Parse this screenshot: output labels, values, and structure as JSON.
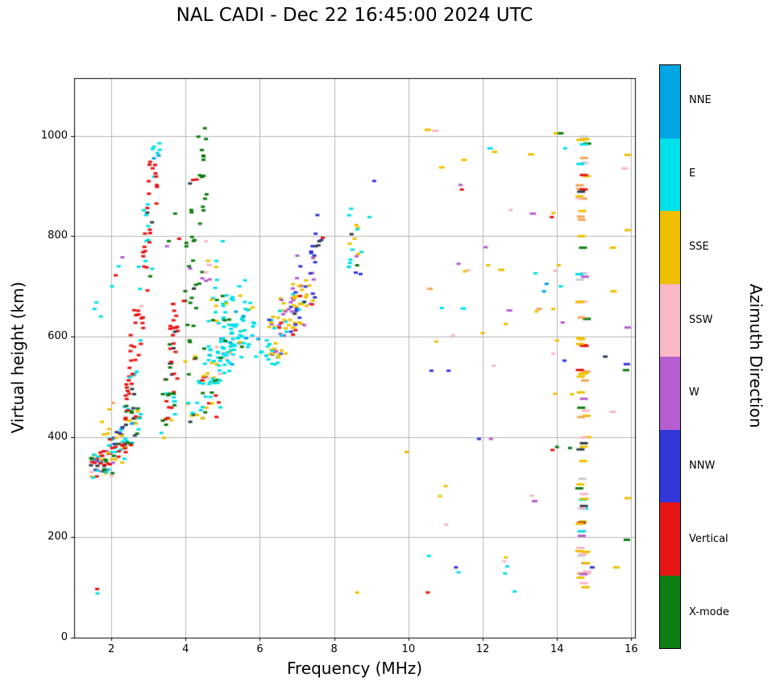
{
  "chart_data": {
    "type": "scatter",
    "title": "NAL CADI - Dec 22 16:45:00 2024 UTC",
    "xlabel": "Frequency (MHz)",
    "ylabel": "Virtual height (km)",
    "colorbar_label": "Azimuth Direction",
    "xlim": [
      1.0,
      16.1
    ],
    "ylim": [
      0,
      1115
    ],
    "xticks": [
      2,
      4,
      6,
      8,
      10,
      12,
      14,
      16
    ],
    "yticks": [
      0,
      200,
      400,
      600,
      800,
      1000
    ],
    "grid": true,
    "grid_color": "#b6b6b6",
    "seed": 42,
    "point_size": [
      5,
      3
    ],
    "colors": {
      "NNE": "#00A5E3",
      "E": "#00E0E8",
      "SSE": "#EFC000",
      "SSW": "#F9B8C6",
      "W": "#B55ECF",
      "NNW": "#3437D8",
      "Vertical": "#E81515",
      "X-mode": "#0E7D12",
      "dark": "#32404E",
      "orange": "#F2A65A",
      "gray": "#C8CDD2"
    },
    "legend": [
      {
        "label": "NNE",
        "key": "NNE"
      },
      {
        "label": "E",
        "key": "E"
      },
      {
        "label": "SSE",
        "key": "SSE"
      },
      {
        "label": "SSW",
        "key": "SSW"
      },
      {
        "label": "W",
        "key": "W"
      },
      {
        "label": "NNW",
        "key": "NNW"
      },
      {
        "label": "Vertical",
        "key": "Vertical"
      },
      {
        "label": "X-mode",
        "key": "X-mode"
      }
    ],
    "clusters": [
      {
        "rect": [
          1.45,
          2.05,
          318,
          372
        ],
        "n": 48,
        "colors": {
          "Vertical": 0.3,
          "E": 0.18,
          "SSE": 0.15,
          "X-mode": 0.1,
          "NNW": 0.08,
          "dark": 0.07,
          "W": 0.06,
          "SSW": 0.06
        }
      },
      {
        "rect": [
          1.85,
          2.45,
          345,
          420
        ],
        "n": 40,
        "colors": {
          "SSE": 0.22,
          "E": 0.2,
          "Vertical": 0.18,
          "X-mode": 0.15,
          "dark": 0.1,
          "NNW": 0.15
        }
      },
      {
        "rect": [
          2.25,
          2.8,
          380,
          465
        ],
        "n": 34,
        "colors": {
          "Vertical": 0.28,
          "E": 0.2,
          "X-mode": 0.16,
          "SSE": 0.16,
          "dark": 0.1,
          "NNE": 0.1
        }
      },
      {
        "rect": [
          2.35,
          2.62,
          430,
          525
        ],
        "n": 14,
        "colors": {
          "Vertical": 0.8,
          "dark": 0.2
        }
      },
      {
        "rect": [
          2.48,
          2.75,
          505,
          605
        ],
        "n": 14,
        "colors": {
          "Vertical": 0.85,
          "E": 0.15
        }
      },
      {
        "rect": [
          2.6,
          2.88,
          585,
          700
        ],
        "n": 13,
        "colors": {
          "Vertical": 0.78,
          "SSW": 0.1,
          "E": 0.12
        }
      },
      {
        "rect": [
          2.73,
          3.0,
          685,
          795
        ],
        "n": 12,
        "colors": {
          "Vertical": 0.75,
          "E": 0.25
        }
      },
      {
        "rect": [
          2.87,
          3.14,
          780,
          885
        ],
        "n": 12,
        "colors": {
          "Vertical": 0.7,
          "E": 0.2,
          "dark": 0.1
        }
      },
      {
        "rect": [
          3.0,
          3.28,
          865,
          950
        ],
        "n": 10,
        "colors": {
          "Vertical": 0.8,
          "E": 0.2
        }
      },
      {
        "rect": [
          3.1,
          3.34,
          950,
          988
        ],
        "n": 6,
        "colors": {
          "E": 0.7,
          "NNE": 0.3
        }
      },
      {
        "rect": [
          3.38,
          3.72,
          420,
          520
        ],
        "n": 22,
        "colors": {
          "Vertical": 0.45,
          "X-mode": 0.2,
          "SSE": 0.15,
          "E": 0.2
        }
      },
      {
        "rect": [
          3.52,
          3.82,
          505,
          625
        ],
        "n": 18,
        "colors": {
          "Vertical": 0.6,
          "X-mode": 0.25,
          "dark": 0.15
        }
      },
      {
        "rect": [
          3.58,
          3.8,
          615,
          665
        ],
        "n": 7,
        "colors": {
          "Vertical": 0.8,
          "X-mode": 0.2
        }
      },
      {
        "rect": [
          3.95,
          4.3,
          515,
          700
        ],
        "n": 16,
        "colors": {
          "X-mode": 0.65,
          "SSE": 0.2,
          "Vertical": 0.15
        }
      },
      {
        "rect": [
          4.15,
          4.5,
          690,
          860
        ],
        "n": 11,
        "colors": {
          "X-mode": 0.8,
          "dark": 0.2
        }
      },
      {
        "rect": [
          4.33,
          4.58,
          850,
          1018
        ],
        "n": 11,
        "colors": {
          "X-mode": 0.9,
          "dark": 0.1
        }
      },
      {
        "rect": [
          3.8,
          4.25,
          700,
          800
        ],
        "n": 7,
        "colors": {
          "X-mode": 0.45,
          "Vertical": 0.3,
          "W": 0.25
        }
      },
      {
        "rect": [
          4.05,
          4.35,
          428,
          482
        ],
        "n": 9,
        "colors": {
          "SSE": 0.4,
          "E": 0.3,
          "dark": 0.3
        }
      },
      {
        "rect": [
          4.3,
          4.95,
          432,
          522
        ],
        "n": 30,
        "colors": {
          "E": 0.45,
          "X-mode": 0.2,
          "SSE": 0.18,
          "Vertical": 0.17
        }
      },
      {
        "rect": [
          4.5,
          5.2,
          500,
          592
        ],
        "n": 34,
        "colors": {
          "E": 0.6,
          "SSE": 0.15,
          "X-mode": 0.15,
          "SSW": 0.1
        }
      },
      {
        "rect": [
          4.85,
          5.6,
          538,
          642
        ],
        "n": 40,
        "colors": {
          "E": 0.72,
          "SSE": 0.1,
          "X-mode": 0.06,
          "NNE": 0.12
        }
      },
      {
        "rect": [
          5.2,
          5.85,
          578,
          682
        ],
        "n": 34,
        "colors": {
          "E": 0.78,
          "SSE": 0.1,
          "NNE": 0.12
        }
      },
      {
        "rect": [
          4.6,
          5.12,
          618,
          702
        ],
        "n": 18,
        "colors": {
          "E": 0.6,
          "X-mode": 0.2,
          "SSE": 0.2
        }
      },
      {
        "rect": [
          4.42,
          4.85,
          700,
          795
        ],
        "n": 10,
        "colors": {
          "SSW": 0.3,
          "E": 0.3,
          "SSE": 0.2,
          "W": 0.2
        }
      },
      {
        "rect": [
          5.95,
          6.25,
          552,
          605
        ],
        "n": 7,
        "colors": {
          "E": 0.7,
          "NNE": 0.3
        }
      },
      {
        "rect": [
          6.25,
          6.7,
          558,
          642
        ],
        "n": 26,
        "colors": {
          "SSE": 0.38,
          "E": 0.18,
          "W": 0.14,
          "Vertical": 0.12,
          "NNW": 0.18
        }
      },
      {
        "rect": [
          6.5,
          7.0,
          598,
          682
        ],
        "n": 30,
        "colors": {
          "SSE": 0.42,
          "W": 0.2,
          "NNW": 0.15,
          "Vertical": 0.1,
          "E": 0.13
        }
      },
      {
        "rect": [
          6.8,
          7.3,
          618,
          722
        ],
        "n": 26,
        "colors": {
          "SSE": 0.4,
          "W": 0.2,
          "NNW": 0.18,
          "dark": 0.1,
          "E": 0.12
        }
      },
      {
        "rect": [
          7.0,
          7.5,
          660,
          762
        ],
        "n": 18,
        "colors": {
          "NNW": 0.3,
          "SSE": 0.28,
          "W": 0.2,
          "Vertical": 0.22
        }
      },
      {
        "rect": [
          6.3,
          6.62,
          538,
          575
        ],
        "n": 8,
        "colors": {
          "E": 0.5,
          "SSE": 0.5
        }
      },
      {
        "rect": [
          7.3,
          7.72,
          740,
          800
        ],
        "n": 8,
        "colors": {
          "NNW": 0.4,
          "dark": 0.2,
          "SSE": 0.2,
          "Vertical": 0.2
        }
      },
      {
        "rect": [
          8.35,
          8.75,
          720,
          868
        ],
        "n": 16,
        "colors": {
          "E": 0.5,
          "NNW": 0.2,
          "dark": 0.12,
          "SSE": 0.18
        }
      },
      {
        "rect": [
          14.6,
          14.82,
          88,
          1008
        ],
        "n": 85,
        "w": 10,
        "colors": {
          "SSE": 0.45,
          "orange": 0.13,
          "SSW": 0.11,
          "Vertical": 0.05,
          "X-mode": 0.05,
          "E": 0.06,
          "dark": 0.05,
          "W": 0.04,
          "gray": 0.06
        }
      }
    ],
    "points": [
      [
        1.62,
        97,
        "Vertical"
      ],
      [
        1.63,
        88,
        "E"
      ],
      [
        1.55,
        655,
        "E"
      ],
      [
        1.6,
        668,
        "E"
      ],
      [
        1.72,
        640,
        "E"
      ],
      [
        2.02,
        700,
        "E"
      ],
      [
        2.12,
        722,
        "Vertical"
      ],
      [
        2.2,
        740,
        "E"
      ],
      [
        2.3,
        758,
        "W"
      ],
      [
        1.75,
        430,
        "SSE"
      ],
      [
        1.8,
        405,
        "SSE"
      ],
      [
        1.95,
        455,
        "SSE"
      ],
      [
        2.05,
        468,
        "orange"
      ],
      [
        3.18,
        942,
        "Vertical"
      ],
      [
        3.3,
        985,
        "E"
      ],
      [
        3.05,
        720,
        "X-mode"
      ],
      [
        3.1,
        735,
        "E"
      ],
      [
        3.35,
        408,
        "E"
      ],
      [
        3.42,
        398,
        "SSE"
      ],
      [
        3.55,
        790,
        "X-mode"
      ],
      [
        3.5,
        780,
        "W"
      ],
      [
        3.72,
        845,
        "X-mode"
      ],
      [
        4.2,
        912,
        "Vertical"
      ],
      [
        4.12,
        905,
        "dark"
      ],
      [
        4.3,
        913,
        "Vertical"
      ],
      [
        4.52,
        1015,
        "X-mode"
      ],
      [
        4.55,
        790,
        "SSW"
      ],
      [
        5.0,
        790,
        "E"
      ],
      [
        5.45,
        700,
        "E"
      ],
      [
        5.6,
        712,
        "E"
      ],
      [
        5.9,
        560,
        "E"
      ],
      [
        6.05,
        570,
        "E"
      ],
      [
        7.5,
        805,
        "NNW"
      ],
      [
        7.55,
        842,
        "NNW"
      ],
      [
        7.6,
        790,
        "dark"
      ],
      [
        8.55,
        795,
        "SSE"
      ],
      [
        8.6,
        760,
        "W"
      ],
      [
        8.62,
        742,
        "X-mode"
      ],
      [
        9.08,
        910,
        "NNW"
      ],
      [
        8.95,
        838,
        "E"
      ],
      [
        8.62,
        90,
        "SSE"
      ],
      [
        9.95,
        370,
        "SSE"
      ],
      [
        10.52,
        1012,
        "SSE",
        8
      ],
      [
        10.72,
        1010,
        "SSW",
        8
      ],
      [
        10.9,
        937,
        "SSE",
        7
      ],
      [
        11.5,
        952,
        "SSE",
        7
      ],
      [
        11.4,
        902,
        "W"
      ],
      [
        11.44,
        893,
        "Vertical"
      ],
      [
        12.2,
        975,
        "E",
        7
      ],
      [
        12.32,
        968,
        "SSE",
        7
      ],
      [
        13.3,
        963,
        "SSE",
        8
      ],
      [
        13.98,
        1005,
        "SSE",
        7
      ],
      [
        14.1,
        1005,
        "X-mode",
        7
      ],
      [
        14.22,
        975,
        "E"
      ],
      [
        12.75,
        852,
        "SSW"
      ],
      [
        13.35,
        845,
        "W",
        8
      ],
      [
        13.9,
        846,
        "SSE"
      ],
      [
        13.86,
        838,
        "Vertical"
      ],
      [
        12.08,
        778,
        "W"
      ],
      [
        12.15,
        742,
        "SSE"
      ],
      [
        12.5,
        733,
        "SSE",
        8
      ],
      [
        13.42,
        726,
        "E"
      ],
      [
        11.62,
        732,
        "SSW"
      ],
      [
        11.35,
        745,
        "W"
      ],
      [
        11.52,
        730,
        "SSE"
      ],
      [
        10.58,
        695,
        "orange",
        7
      ],
      [
        10.9,
        657,
        "E"
      ],
      [
        11.48,
        656,
        "E",
        7
      ],
      [
        11.2,
        602,
        "SSW"
      ],
      [
        10.75,
        590,
        "SSE"
      ],
      [
        12.0,
        607,
        "SSE"
      ],
      [
        12.3,
        542,
        "SSW"
      ],
      [
        12.72,
        652,
        "W",
        7
      ],
      [
        13.52,
        655,
        "orange",
        7
      ],
      [
        13.45,
        650,
        "SSE"
      ],
      [
        12.62,
        625,
        "SSE"
      ],
      [
        11.08,
        532,
        "NNW"
      ],
      [
        10.62,
        532,
        "NNW"
      ],
      [
        11.9,
        396,
        "NNW"
      ],
      [
        12.22,
        396,
        "W"
      ],
      [
        13.4,
        272,
        "W",
        7
      ],
      [
        13.32,
        283,
        "SSW"
      ],
      [
        11.0,
        302,
        "SSE"
      ],
      [
        10.85,
        282,
        "SSE"
      ],
      [
        11.02,
        225,
        "SSW"
      ],
      [
        10.55,
        163,
        "E"
      ],
      [
        11.28,
        140,
        "NNW"
      ],
      [
        11.35,
        130,
        "E"
      ],
      [
        10.52,
        90,
        "Vertical"
      ],
      [
        12.58,
        152,
        "SSW"
      ],
      [
        12.66,
        142,
        "E"
      ],
      [
        12.6,
        128,
        "E"
      ],
      [
        12.86,
        92,
        "E"
      ],
      [
        12.62,
        160,
        "SSE"
      ],
      [
        13.65,
        690,
        "NNE"
      ],
      [
        13.72,
        705,
        "NNE"
      ],
      [
        14.05,
        742,
        "SSE"
      ],
      [
        13.95,
        731,
        "SSW"
      ],
      [
        14.1,
        700,
        "E"
      ],
      [
        13.9,
        655,
        "SSE"
      ],
      [
        14.0,
        592,
        "SSE"
      ],
      [
        13.9,
        566,
        "SSW"
      ],
      [
        13.95,
        486,
        "SSE"
      ],
      [
        14.0,
        380,
        "X-mode"
      ],
      [
        13.88,
        374,
        "Vertical"
      ],
      [
        14.2,
        552,
        "NNW"
      ],
      [
        14.15,
        628,
        "W"
      ],
      [
        14.4,
        485,
        "SSE"
      ],
      [
        14.35,
        378,
        "X-mode"
      ],
      [
        15.9,
        962,
        "SSE",
        8
      ],
      [
        15.82,
        935,
        "SSW",
        8
      ],
      [
        15.9,
        812,
        "SSE",
        8
      ],
      [
        15.5,
        777,
        "SSE",
        8
      ],
      [
        15.52,
        690,
        "SSE",
        8
      ],
      [
        15.9,
        618,
        "W",
        8
      ],
      [
        15.88,
        545,
        "NNW",
        8
      ],
      [
        15.86,
        533,
        "X-mode",
        8
      ],
      [
        15.5,
        450,
        "SSW",
        8
      ],
      [
        15.9,
        278,
        "SSE",
        8
      ],
      [
        15.88,
        195,
        "X-mode",
        8
      ],
      [
        15.6,
        140,
        "SSE",
        8
      ],
      [
        14.95,
        140,
        "NNW",
        6
      ],
      [
        15.3,
        560,
        "dark",
        6
      ]
    ]
  }
}
